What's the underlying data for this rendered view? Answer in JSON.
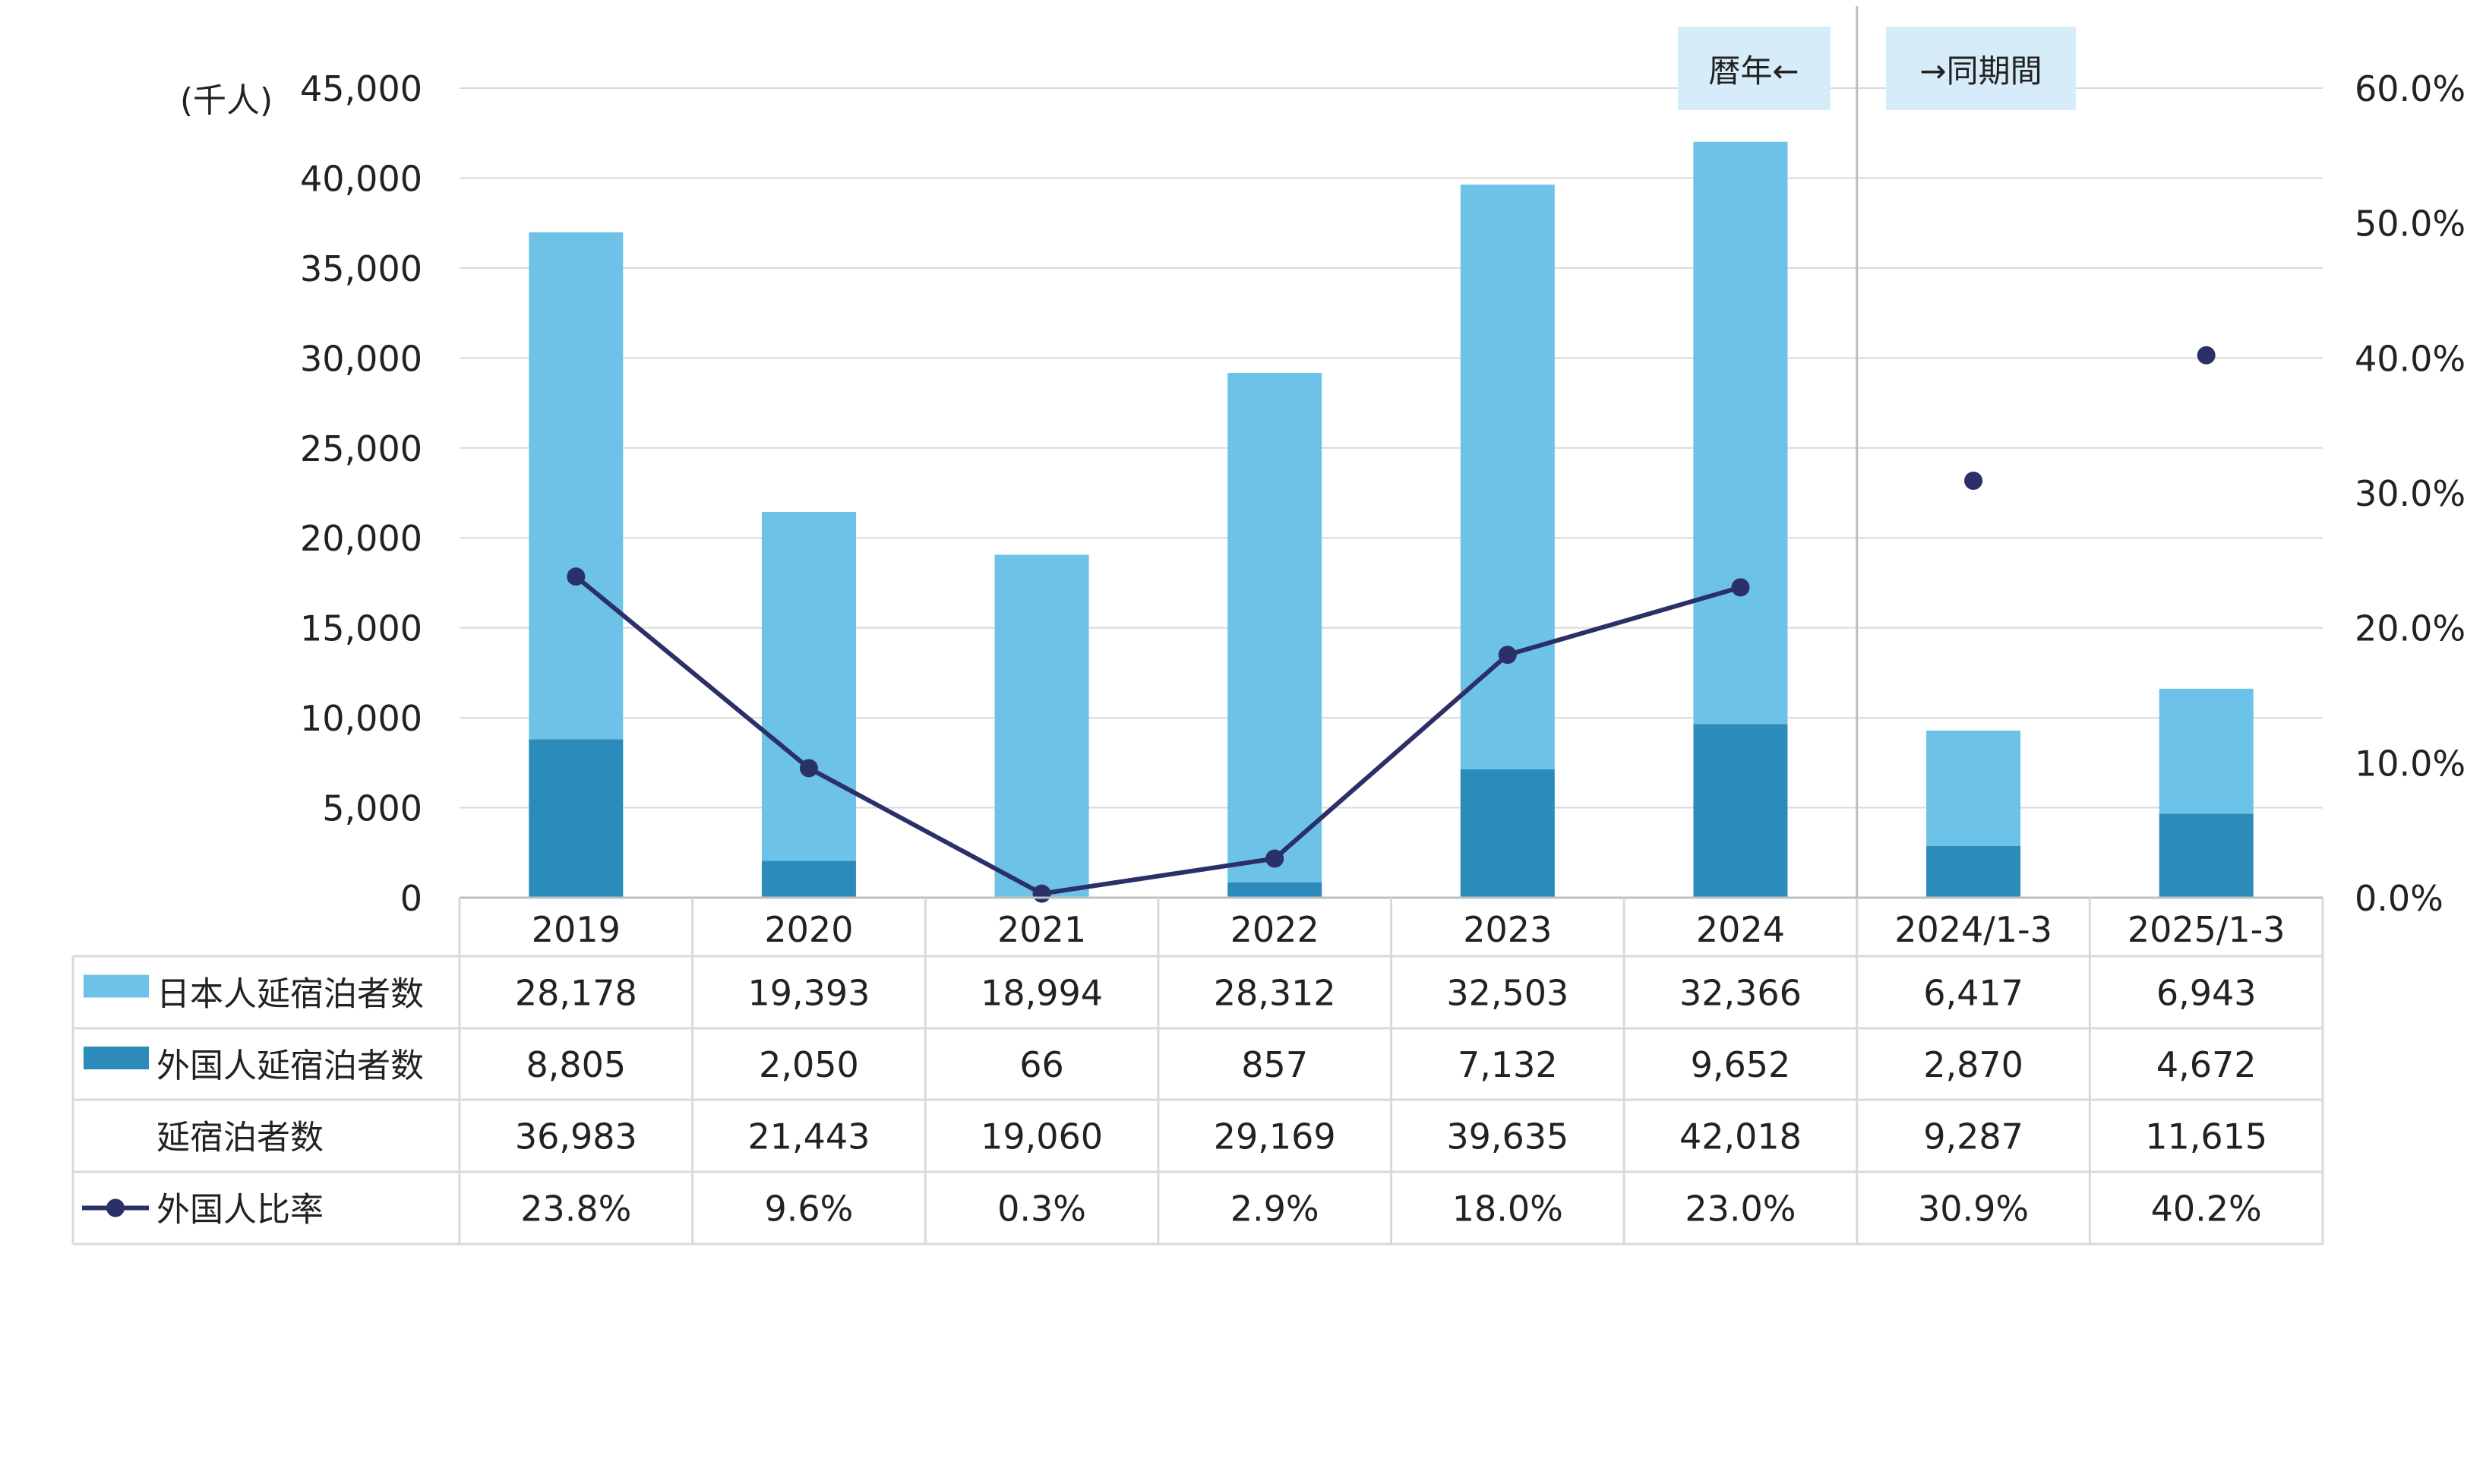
{
  "chart_data": {
    "type": "bar",
    "stacked": true,
    "categories": [
      "2019",
      "2020",
      "2021",
      "2022",
      "2023",
      "2024",
      "2024/1-3",
      "2025/1-3"
    ],
    "series": [
      {
        "name": "日本人延宿泊者数",
        "type": "bar",
        "axis": "left",
        "color": "#6CC3E7",
        "values": [
          28178,
          19393,
          18994,
          28312,
          32503,
          32366,
          6417,
          6943
        ]
      },
      {
        "name": "外国人延宿泊者数",
        "type": "bar",
        "axis": "left",
        "color": "#2B8BBB",
        "values": [
          8805,
          2050,
          66,
          857,
          7132,
          9652,
          2870,
          4672
        ]
      },
      {
        "name": "延宿泊者数",
        "type": "total",
        "values": [
          36983,
          21443,
          19060,
          29169,
          39635,
          42018,
          9287,
          11615
        ]
      },
      {
        "name": "外国人比率",
        "type": "line",
        "axis": "right",
        "color": "#2B3168",
        "values": [
          23.8,
          9.6,
          0.3,
          2.9,
          18.0,
          23.0,
          30.9,
          40.2
        ],
        "connected_groups": [
          [
            0,
            1,
            2,
            3,
            4,
            5
          ],
          [
            6
          ],
          [
            7
          ]
        ]
      }
    ],
    "y_left": {
      "unit_label": "(千人)",
      "range": [
        0,
        45000
      ],
      "ticks": [
        "0",
        "5,000",
        "10,000",
        "15,000",
        "20,000",
        "25,000",
        "30,000",
        "35,000",
        "40,000",
        "45,000"
      ]
    },
    "y_right": {
      "range": [
        0,
        60
      ],
      "ticks": [
        "0.0%",
        "10.0%",
        "20.0%",
        "30.0%",
        "40.0%",
        "50.0%",
        "60.0%"
      ]
    },
    "grid": true,
    "annotations": {
      "left": "暦年←",
      "right": "→同期間",
      "box_color": "#D6ECF8"
    },
    "table": {
      "rows": [
        {
          "label": "日本人延宿泊者数",
          "values": [
            "28,178",
            "19,393",
            "18,994",
            "28,312",
            "32,503",
            "32,366",
            "6,417",
            "6,943"
          ]
        },
        {
          "label": "外国人延宿泊者数",
          "values": [
            "8,805",
            "2,050",
            "66",
            "857",
            "7,132",
            "9,652",
            "2,870",
            "4,672"
          ]
        },
        {
          "label": "延宿泊者数",
          "values": [
            "36,983",
            "21,443",
            "19,060",
            "29,169",
            "39,635",
            "42,018",
            "9,287",
            "11,615"
          ]
        },
        {
          "label": "外国人比率",
          "values": [
            "23.8%",
            "9.6%",
            "0.3%",
            "2.9%",
            "18.0%",
            "23.0%",
            "30.9%",
            "40.2%"
          ]
        }
      ]
    }
  }
}
